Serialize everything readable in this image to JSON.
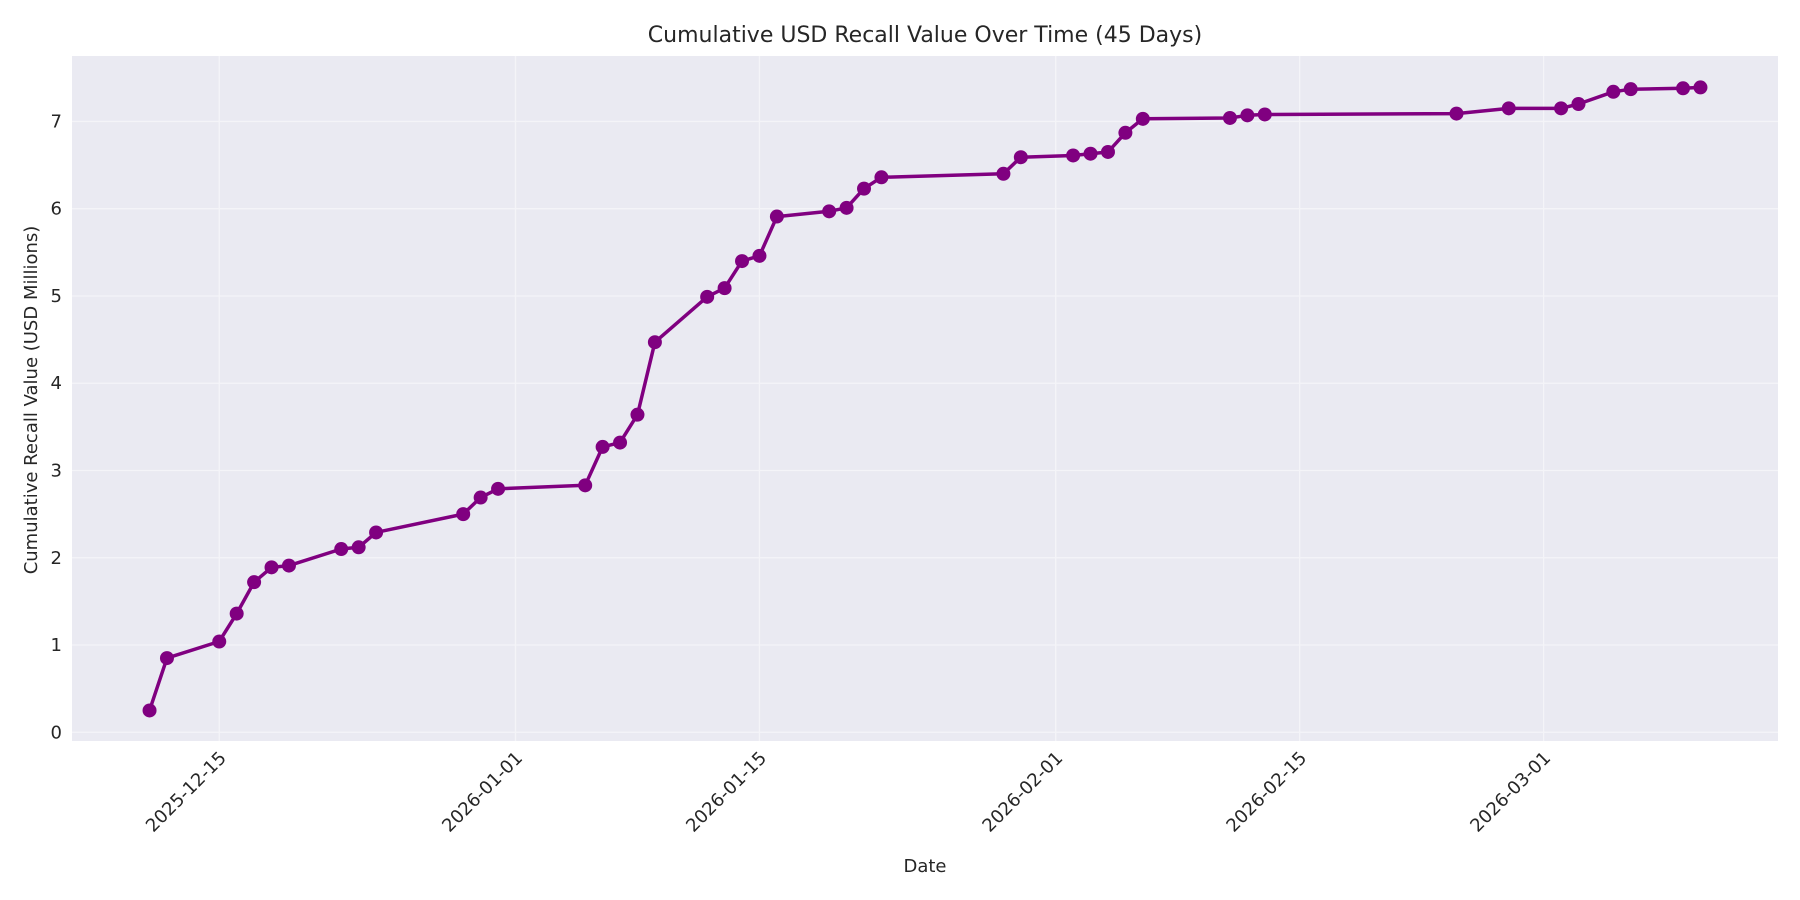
{
  "chart_data": {
    "type": "line",
    "title": "Cumulative USD Recall Value Over Time (45 Days)",
    "xlabel": "Date",
    "ylabel": "Cumulative Recall Value (USD Millions)",
    "x_tick_labels": [
      "2025-12-15",
      "2026-01-01",
      "2026-01-15",
      "2026-02-01",
      "2026-02-15",
      "2026-03-01"
    ],
    "y_tick_labels": [
      "0",
      "1",
      "2",
      "3",
      "4",
      "5",
      "6",
      "7"
    ],
    "xlim": [
      "2025-12-06",
      "2026-03-14"
    ],
    "ylim": [
      -0.1,
      7.75
    ],
    "grid": true,
    "legend": null,
    "style": {
      "line_color": "#800080",
      "marker": "circle",
      "background": "#eaeaf2"
    },
    "series": [
      {
        "name": "Cumulative Recall Value",
        "x": [
          "2025-12-11",
          "2025-12-12",
          "2025-12-15",
          "2025-12-16",
          "2025-12-17",
          "2025-12-18",
          "2025-12-19",
          "2025-12-22",
          "2025-12-23",
          "2025-12-24",
          "2025-12-29",
          "2025-12-30",
          "2025-12-31",
          "2026-01-05",
          "2026-01-06",
          "2026-01-07",
          "2026-01-08",
          "2026-01-09",
          "2026-01-12",
          "2026-01-13",
          "2026-01-14",
          "2026-01-15",
          "2026-01-16",
          "2026-01-19",
          "2026-01-20",
          "2026-01-21",
          "2026-01-22",
          "2026-01-29",
          "2026-01-30",
          "2026-02-02",
          "2026-02-03",
          "2026-02-04",
          "2026-02-05",
          "2026-02-06",
          "2026-02-11",
          "2026-02-12",
          "2026-02-13",
          "2026-02-24",
          "2026-02-27",
          "2026-03-02",
          "2026-03-03",
          "2026-03-05",
          "2026-03-06",
          "2026-03-09",
          "2026-03-10"
        ],
        "values": [
          0.25,
          0.85,
          1.04,
          1.36,
          1.72,
          1.89,
          1.91,
          2.1,
          2.12,
          2.29,
          2.5,
          2.69,
          2.79,
          2.83,
          3.27,
          3.32,
          3.64,
          4.47,
          4.99,
          5.09,
          5.4,
          5.46,
          5.91,
          5.97,
          6.01,
          6.23,
          6.36,
          6.4,
          6.59,
          6.61,
          6.63,
          6.65,
          6.87,
          7.03,
          7.04,
          7.07,
          7.08,
          7.09,
          7.15,
          7.15,
          7.2,
          7.34,
          7.37,
          7.38,
          7.39
        ]
      }
    ]
  }
}
